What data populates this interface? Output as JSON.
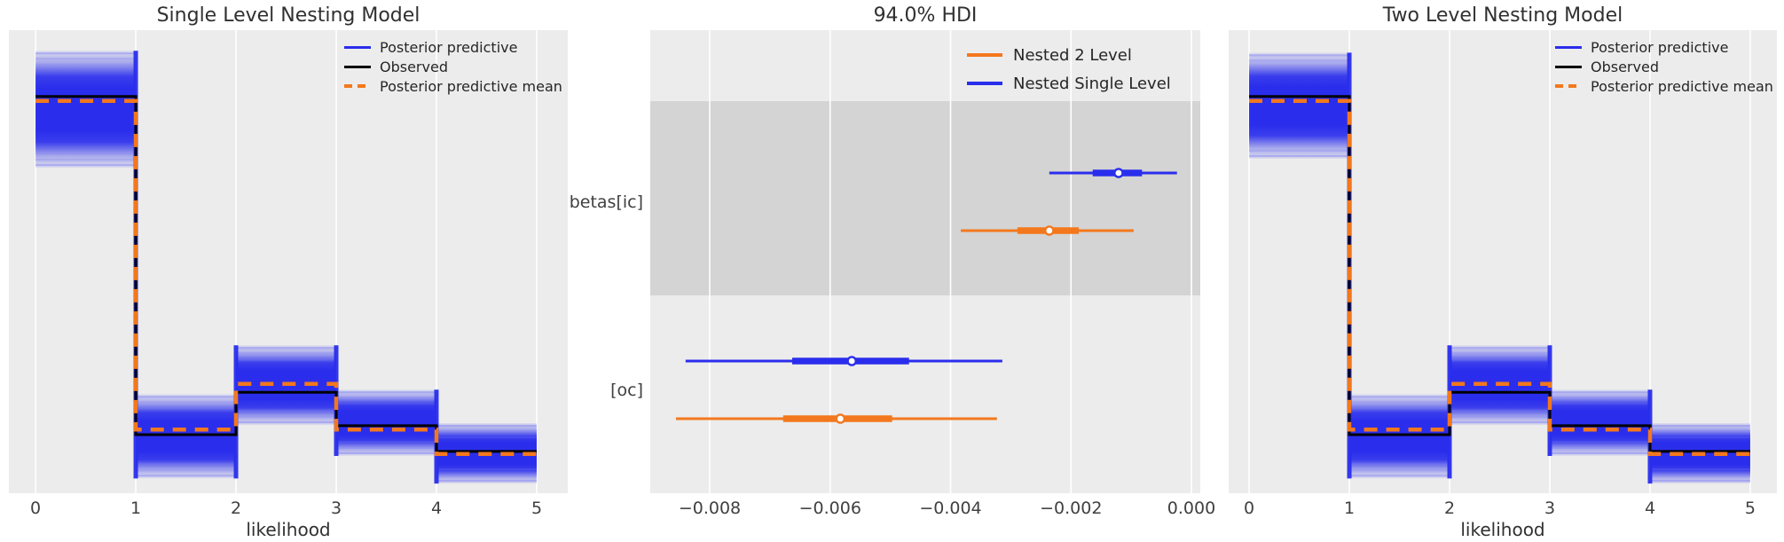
{
  "figure": {
    "background": "#ffffff",
    "axes_background": "#ececec",
    "grid_color": "#ffffff",
    "shaded_band_color": "#d4d4d4",
    "text_color": "#303030",
    "tick_color": "#404040",
    "palette": {
      "blue": "#2a2eec",
      "orange": "#f3781d",
      "black": "#000000"
    }
  },
  "chart_data": [
    {
      "type": "step-ppc",
      "title": "Single Level Nesting Model",
      "xlabel": "likelihood",
      "xlim": [
        -0.266,
        5.31
      ],
      "ylim": [
        0,
        0.72
      ],
      "grid": true,
      "bin_edges": [
        0,
        1,
        2,
        3,
        4,
        5
      ],
      "xticks": [
        {
          "v": 0,
          "label": "0"
        },
        {
          "v": 1,
          "label": "1"
        },
        {
          "v": 2,
          "label": "2"
        },
        {
          "v": 3,
          "label": "3"
        },
        {
          "v": 4,
          "label": "4"
        },
        {
          "v": 5,
          "label": "5"
        }
      ],
      "observed": [
        0.617,
        0.091,
        0.157,
        0.105,
        0.065
      ],
      "posterior_predictive_mean": [
        0.61,
        0.099,
        0.17,
        0.099,
        0.061
      ],
      "posterior_predictive_band": [
        [
          0.506,
          0.688
        ],
        [
          0.023,
          0.154
        ],
        [
          0.106,
          0.23
        ],
        [
          0.058,
          0.161
        ],
        [
          0.015,
          0.109
        ]
      ],
      "legend": [
        {
          "label": "Posterior predictive",
          "color": "blue",
          "dashed": false
        },
        {
          "label": "Observed",
          "color": "black",
          "dashed": false
        },
        {
          "label": "Posterior predictive mean",
          "color": "orange",
          "dashed": true
        }
      ]
    },
    {
      "type": "forest",
      "title": "94.0% HDI",
      "xlabel": "",
      "xlim": [
        -0.008987,
        0.000147
      ],
      "grid": true,
      "xticks": [
        {
          "v": -0.008,
          "label": "−0.008"
        },
        {
          "v": -0.006,
          "label": "−0.006"
        },
        {
          "v": -0.004,
          "label": "−0.004"
        },
        {
          "v": -0.002,
          "label": "−0.002"
        },
        {
          "v": 0.0,
          "label": "0.000"
        }
      ],
      "rows": [
        {
          "label": "betas[ic]",
          "shaded": true,
          "series": [
            {
              "name": "Nested Single Level",
              "color": "blue",
              "hdi": [
                -0.00236,
                -0.00024
              ],
              "quartile": [
                -0.00164,
                -0.00082
              ],
              "median": -0.00121
            },
            {
              "name": "Nested 2 Level",
              "color": "orange",
              "hdi": [
                -0.00383,
                -0.00096
              ],
              "quartile": [
                -0.00289,
                -0.00187
              ],
              "median": -0.00236
            }
          ]
        },
        {
          "label": "[oc]",
          "shaded": false,
          "series": [
            {
              "name": "Nested Single Level",
              "color": "blue",
              "hdi": [
                -0.0084,
                -0.00314
              ],
              "quartile": [
                -0.00663,
                -0.00469
              ],
              "median": -0.00564
            },
            {
              "name": "Nested 2 Level",
              "color": "orange",
              "hdi": [
                -0.00856,
                -0.00323
              ],
              "quartile": [
                -0.00678,
                -0.00497
              ],
              "median": -0.00583
            }
          ]
        }
      ],
      "legend": [
        {
          "label": "Nested 2 Level",
          "color": "orange",
          "dashed": false
        },
        {
          "label": "Nested Single Level",
          "color": "blue",
          "dashed": false
        }
      ]
    },
    {
      "type": "step-ppc",
      "title": "Two Level Nesting Model",
      "xlabel": "likelihood",
      "xlim": [
        -0.204,
        5.266
      ],
      "ylim": [
        0,
        0.72
      ],
      "grid": true,
      "bin_edges": [
        0,
        1,
        2,
        3,
        4,
        5
      ],
      "xticks": [
        {
          "v": 0,
          "label": "0"
        },
        {
          "v": 1,
          "label": "1"
        },
        {
          "v": 2,
          "label": "2"
        },
        {
          "v": 3,
          "label": "3"
        },
        {
          "v": 4,
          "label": "4"
        },
        {
          "v": 5,
          "label": "5"
        }
      ],
      "observed": [
        0.617,
        0.091,
        0.157,
        0.105,
        0.065
      ],
      "posterior_predictive_mean": [
        0.61,
        0.099,
        0.17,
        0.099,
        0.061
      ],
      "posterior_predictive_band": [
        [
          0.52,
          0.685
        ],
        [
          0.023,
          0.154
        ],
        [
          0.106,
          0.23
        ],
        [
          0.058,
          0.161
        ],
        [
          0.015,
          0.109
        ]
      ],
      "legend": [
        {
          "label": "Posterior predictive",
          "color": "blue",
          "dashed": false
        },
        {
          "label": "Observed",
          "color": "black",
          "dashed": false
        },
        {
          "label": "Posterior predictive mean",
          "color": "orange",
          "dashed": true
        }
      ]
    }
  ]
}
